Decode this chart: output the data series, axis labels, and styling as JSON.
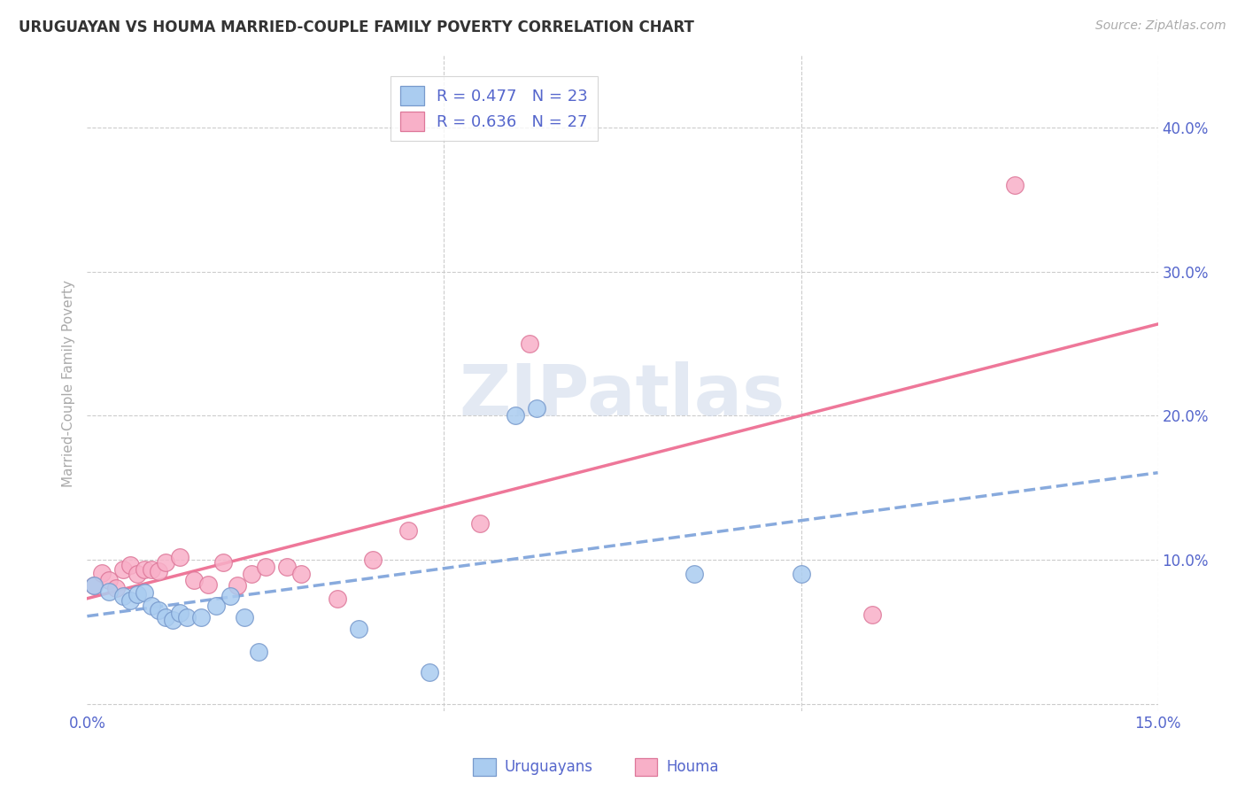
{
  "title": "URUGUAYAN VS HOUMA MARRIED-COUPLE FAMILY POVERTY CORRELATION CHART",
  "source": "Source: ZipAtlas.com",
  "ylabel": "Married-Couple Family Poverty",
  "xlim": [
    0,
    0.15
  ],
  "ylim": [
    -0.005,
    0.45
  ],
  "ytick_vals": [
    0.0,
    0.1,
    0.2,
    0.3,
    0.4
  ],
  "ytick_labels_right": [
    "",
    "10.0%",
    "20.0%",
    "30.0%",
    "40.0%"
  ],
  "xtick_vals": [
    0.0,
    0.05,
    0.1,
    0.15
  ],
  "xtick_labels": [
    "0.0%",
    "",
    "",
    "15.0%"
  ],
  "legend_r_uruguayan": "R = 0.477",
  "legend_n_uruguayan": "N = 23",
  "legend_r_houma": "R = 0.636",
  "legend_n_houma": "N = 27",
  "uruguayan_fill": "#aaccf0",
  "uruguayan_edge": "#7799cc",
  "houma_fill": "#f8b0c8",
  "houma_edge": "#dd7799",
  "trend_blue": "#88aadd",
  "trend_pink": "#ee7799",
  "grid_color": "#cccccc",
  "label_color": "#5566cc",
  "watermark_color": "#ccd8ea",
  "background": "#ffffff",
  "uruguayan_x": [
    0.001,
    0.003,
    0.005,
    0.006,
    0.007,
    0.008,
    0.009,
    0.01,
    0.011,
    0.012,
    0.013,
    0.014,
    0.016,
    0.018,
    0.02,
    0.022,
    0.024,
    0.038,
    0.048,
    0.06,
    0.063,
    0.085,
    0.1
  ],
  "uruguayan_y": [
    0.082,
    0.078,
    0.075,
    0.072,
    0.076,
    0.077,
    0.068,
    0.065,
    0.06,
    0.058,
    0.063,
    0.06,
    0.06,
    0.068,
    0.075,
    0.06,
    0.036,
    0.052,
    0.022,
    0.2,
    0.205,
    0.09,
    0.09
  ],
  "houma_x": [
    0.001,
    0.002,
    0.003,
    0.004,
    0.005,
    0.006,
    0.007,
    0.008,
    0.009,
    0.01,
    0.011,
    0.013,
    0.015,
    0.017,
    0.019,
    0.021,
    0.023,
    0.025,
    0.028,
    0.03,
    0.035,
    0.04,
    0.045,
    0.055,
    0.062,
    0.11,
    0.13
  ],
  "houma_y": [
    0.082,
    0.091,
    0.086,
    0.08,
    0.093,
    0.096,
    0.09,
    0.093,
    0.093,
    0.092,
    0.098,
    0.102,
    0.086,
    0.083,
    0.098,
    0.082,
    0.09,
    0.095,
    0.095,
    0.09,
    0.073,
    0.1,
    0.12,
    0.125,
    0.25,
    0.062,
    0.36
  ]
}
